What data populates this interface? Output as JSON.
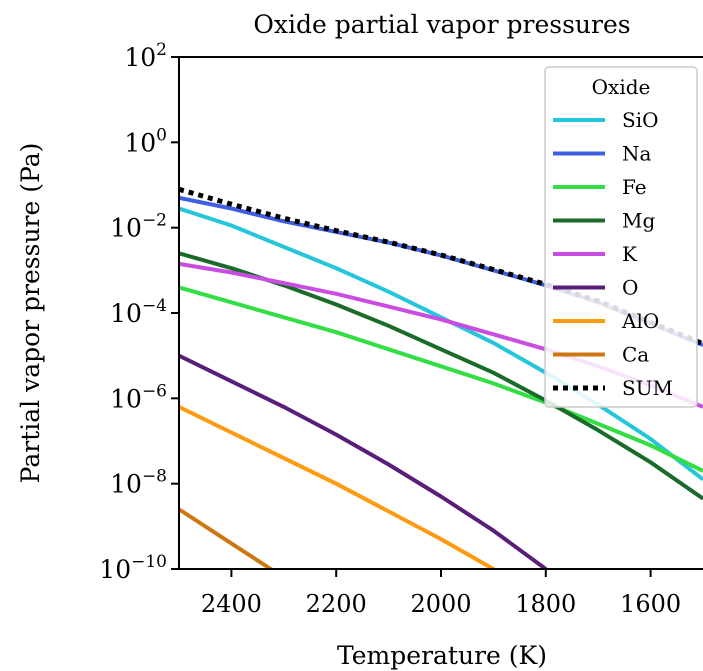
{
  "chart_data": {
    "type": "line",
    "title": "Oxide partial vapor pressures",
    "xlabel": "Temperature (K)",
    "ylabel": "Partial vapor pressure (Pa)",
    "x_reversed": true,
    "xlim": [
      2500,
      1500
    ],
    "y_scale": "log",
    "ylim_exponent": [
      -10,
      2
    ],
    "x_ticks": [
      "2400",
      "2200",
      "2000",
      "1800",
      "1600"
    ],
    "y_ticks": [
      {
        "base": "10",
        "exp": "2"
      },
      {
        "base": "10",
        "exp": "0"
      },
      {
        "base": "10",
        "exp": "−2"
      },
      {
        "base": "10",
        "exp": "−4"
      },
      {
        "base": "10",
        "exp": "−6"
      },
      {
        "base": "10",
        "exp": "−8"
      },
      {
        "base": "10",
        "exp": "−10"
      }
    ],
    "legend": {
      "title": "Oxide",
      "position": "top-right"
    },
    "series": [
      {
        "name": "SiO",
        "color": "#26c6da",
        "dash": "solid",
        "x": [
          2500,
          2400,
          2300,
          2200,
          2100,
          2000,
          1900,
          1800,
          1700,
          1600,
          1500
        ],
        "y_log10": [
          -1.55,
          -1.95,
          -2.45,
          -2.95,
          -3.5,
          -4.1,
          -4.7,
          -5.4,
          -6.15,
          -6.95,
          -7.9
        ]
      },
      {
        "name": "Na",
        "color": "#3f5fe0",
        "dash": "solid",
        "x": [
          2500,
          2400,
          2300,
          2200,
          2100,
          2000,
          1900,
          1800,
          1700,
          1600,
          1500
        ],
        "y_log10": [
          -1.3,
          -1.55,
          -1.85,
          -2.1,
          -2.35,
          -2.65,
          -3.0,
          -3.35,
          -3.75,
          -4.25,
          -4.75
        ]
      },
      {
        "name": "Fe",
        "color": "#33dd44",
        "dash": "solid",
        "x": [
          2500,
          2400,
          2300,
          2200,
          2100,
          2000,
          1900,
          1800,
          1700,
          1600,
          1500
        ],
        "y_log10": [
          -3.4,
          -3.75,
          -4.1,
          -4.45,
          -4.85,
          -5.25,
          -5.65,
          -6.1,
          -6.6,
          -7.1,
          -7.7
        ]
      },
      {
        "name": "Mg",
        "color": "#1a6b2a",
        "dash": "solid",
        "x": [
          2500,
          2400,
          2300,
          2200,
          2100,
          2000,
          1900,
          1800,
          1700,
          1600,
          1500
        ],
        "y_log10": [
          -2.6,
          -2.95,
          -3.35,
          -3.8,
          -4.3,
          -4.85,
          -5.4,
          -6.05,
          -6.75,
          -7.5,
          -8.35
        ]
      },
      {
        "name": "K",
        "color": "#c84de0",
        "dash": "solid",
        "x": [
          2500,
          2400,
          2300,
          2200,
          2100,
          2000,
          1900,
          1800,
          1700,
          1600,
          1500
        ],
        "y_log10": [
          -2.85,
          -3.05,
          -3.3,
          -3.55,
          -3.85,
          -4.15,
          -4.5,
          -4.85,
          -5.25,
          -5.7,
          -6.2
        ]
      },
      {
        "name": "O",
        "color": "#5a1e7a",
        "dash": "solid",
        "x": [
          2500,
          2400,
          2300,
          2200,
          2100,
          2000,
          1900,
          1800
        ],
        "y_log10": [
          -5.0,
          -5.6,
          -6.2,
          -6.85,
          -7.55,
          -8.3,
          -9.1,
          -10.0
        ]
      },
      {
        "name": "AlO",
        "color": "#ff9a10",
        "dash": "solid",
        "x": [
          2500,
          2400,
          2300,
          2200,
          2100,
          2000,
          1900,
          1850
        ],
        "y_log10": [
          -6.2,
          -6.8,
          -7.4,
          -8.0,
          -8.65,
          -9.3,
          -10.0,
          -10.35
        ]
      },
      {
        "name": "Ca",
        "color": "#cc7712",
        "dash": "solid",
        "x": [
          2500,
          2400,
          2300
        ],
        "y_log10": [
          -8.6,
          -9.4,
          -10.2
        ]
      },
      {
        "name": "SUM",
        "color": "#000000",
        "dash": "dotted",
        "x": [
          2500,
          2400,
          2300,
          2200,
          2100,
          2000,
          1900,
          1800,
          1700,
          1600,
          1500
        ],
        "y_log10": [
          -1.1,
          -1.45,
          -1.78,
          -2.07,
          -2.34,
          -2.64,
          -2.98,
          -3.33,
          -3.72,
          -4.22,
          -4.72
        ]
      }
    ]
  }
}
